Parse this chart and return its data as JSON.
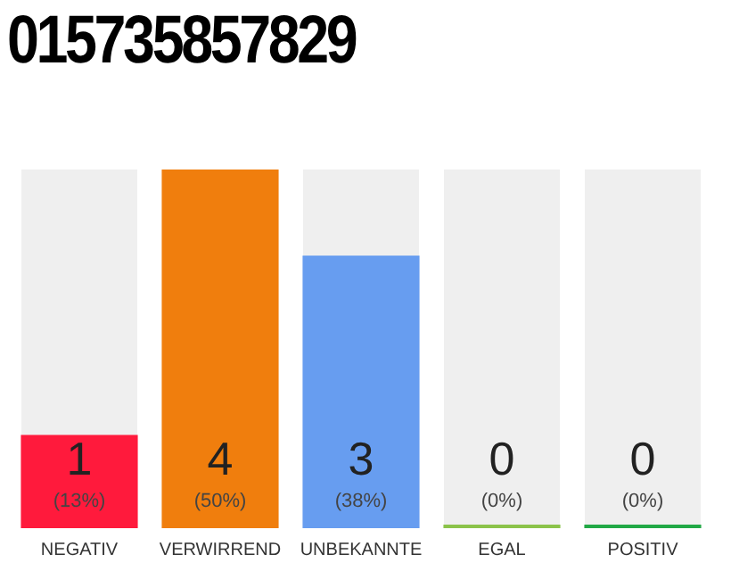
{
  "chart_data": {
    "type": "bar",
    "title": "015735857829",
    "categories": [
      "NEGATIV",
      "VERWIRREND",
      "UNBEKANNTE",
      "EGAL",
      "POSITIV"
    ],
    "values": [
      13,
      50,
      38,
      0,
      0
    ],
    "colors": [
      "#ff1a3c",
      "#f07e0d",
      "#679df0",
      "#8bc34a",
      "#22a846"
    ],
    "value_labels": [
      "1 (13%)",
      "4 (50%)",
      "3 (38%)",
      "0 (0%)",
      "0 (0%)"
    ]
  }
}
